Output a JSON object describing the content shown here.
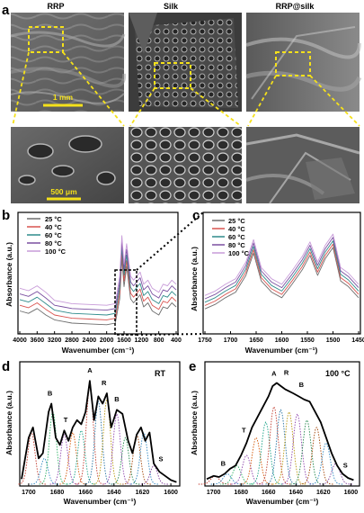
{
  "panel_a": {
    "label": "a",
    "columns": [
      "RRP",
      "Silk",
      "RRP@silk"
    ],
    "scalebar_top": "1 mm",
    "scalebar_bottom": "500 μm",
    "colors": {
      "highlight_box": "#f5e11a",
      "sem_dark": "#2a2a2a",
      "sem_light": "#9a9a9a"
    }
  },
  "panel_b": {
    "label": "b",
    "legend": [
      "25 °C",
      "40 °C",
      "60 °C",
      "80 °C",
      "100 °C"
    ],
    "legend_colors": [
      "#6e6e6e",
      "#d9534f",
      "#2e8b8b",
      "#7a4fa0",
      "#c79ad8"
    ],
    "ylabel": "Absorbance (a.u.)",
    "xlabel": "Wavenumber (cm⁻¹)",
    "xticks": [
      "4000",
      "3600",
      "3200",
      "2800",
      "2400",
      "2000",
      "1600",
      "1200",
      "800",
      "400"
    ]
  },
  "panel_c": {
    "label": "c",
    "legend": [
      "25 °C",
      "40 °C",
      "60 °C",
      "80 °C",
      "100 °C"
    ],
    "ylabel": "Absorbance (a.u.)",
    "xlabel": "Wavenumber (cm⁻¹)",
    "xticks": [
      "1750",
      "1700",
      "1650",
      "1600",
      "1550",
      "1500",
      "1450"
    ]
  },
  "panel_d": {
    "label": "d",
    "condition": "RT",
    "ylabel": "Absorbance (a.u.)",
    "xlabel": "Wavenumber (cm⁻¹)",
    "xticks": [
      "1700",
      "1680",
      "1660",
      "1640",
      "1620",
      "1600"
    ],
    "peak_labels": [
      "B",
      "T",
      "A",
      "R",
      "B",
      "S"
    ]
  },
  "panel_e": {
    "label": "e",
    "condition": "100 °C",
    "ylabel": "Absorbance (a.u.)",
    "xlabel": "Wavenumber (cm⁻¹)",
    "xticks": [
      "1700",
      "1680",
      "1660",
      "1640",
      "1620",
      "1600"
    ],
    "peak_labels": [
      "B",
      "T",
      "A",
      "R",
      "B",
      "S"
    ]
  },
  "chart_data": [
    {
      "type": "line",
      "panel": "b",
      "xlabel": "Wavenumber (cm⁻¹)",
      "ylabel": "Absorbance (a.u.)",
      "xlim": [
        4000,
        400
      ],
      "series": [
        {
          "name": "25 °C",
          "x": [
            4000,
            3800,
            3600,
            3400,
            3200,
            3000,
            2800,
            2400,
            2000,
            1800,
            1700,
            1650,
            1600,
            1540,
            1450,
            1380,
            1230,
            1150,
            1050,
            950,
            800,
            700,
            600,
            500,
            400
          ],
          "y": [
            0.25,
            0.22,
            0.28,
            0.2,
            0.14,
            0.12,
            0.1,
            0.09,
            0.08,
            0.1,
            0.4,
            0.9,
            0.55,
            0.8,
            0.4,
            0.35,
            0.45,
            0.3,
            0.35,
            0.25,
            0.2,
            0.3,
            0.28,
            0.35,
            0.3
          ]
        },
        {
          "name": "40 °C",
          "x": [
            4000,
            3800,
            3600,
            3400,
            3200,
            3000,
            2800,
            2400,
            2000,
            1800,
            1700,
            1650,
            1600,
            1540,
            1450,
            1380,
            1230,
            1150,
            1050,
            950,
            800,
            700,
            600,
            500,
            400
          ],
          "y": [
            0.27,
            0.24,
            0.3,
            0.22,
            0.15,
            0.13,
            0.11,
            0.1,
            0.09,
            0.11,
            0.42,
            0.92,
            0.57,
            0.82,
            0.42,
            0.37,
            0.47,
            0.32,
            0.37,
            0.27,
            0.22,
            0.32,
            0.3,
            0.37,
            0.32
          ]
        },
        {
          "name": "60 °C",
          "x": [
            4000,
            3800,
            3600,
            3400,
            3200,
            3000,
            2800,
            2400,
            2000,
            1800,
            1700,
            1650,
            1600,
            1540,
            1450,
            1380,
            1230,
            1150,
            1050,
            950,
            800,
            700,
            600,
            500,
            400
          ],
          "y": [
            0.29,
            0.26,
            0.32,
            0.24,
            0.16,
            0.14,
            0.12,
            0.11,
            0.1,
            0.12,
            0.44,
            0.94,
            0.59,
            0.84,
            0.44,
            0.39,
            0.49,
            0.34,
            0.39,
            0.29,
            0.24,
            0.34,
            0.32,
            0.39,
            0.34
          ]
        },
        {
          "name": "80 °C",
          "x": [
            4000,
            3800,
            3600,
            3400,
            3200,
            3000,
            2800,
            2400,
            2000,
            1800,
            1700,
            1650,
            1600,
            1540,
            1450,
            1380,
            1230,
            1150,
            1050,
            950,
            800,
            700,
            600,
            500,
            400
          ],
          "y": [
            0.31,
            0.28,
            0.34,
            0.26,
            0.17,
            0.15,
            0.13,
            0.12,
            0.11,
            0.13,
            0.46,
            0.96,
            0.61,
            0.86,
            0.46,
            0.41,
            0.51,
            0.36,
            0.41,
            0.31,
            0.26,
            0.36,
            0.34,
            0.41,
            0.36
          ]
        },
        {
          "name": "100 °C",
          "x": [
            4000,
            3800,
            3600,
            3400,
            3200,
            3000,
            2800,
            2400,
            2000,
            1800,
            1700,
            1650,
            1600,
            1540,
            1450,
            1380,
            1230,
            1150,
            1050,
            950,
            800,
            700,
            600,
            500,
            400
          ],
          "y": [
            0.33,
            0.3,
            0.36,
            0.28,
            0.18,
            0.16,
            0.14,
            0.13,
            0.12,
            0.14,
            0.48,
            0.98,
            0.63,
            0.88,
            0.48,
            0.43,
            0.53,
            0.38,
            0.43,
            0.33,
            0.28,
            0.38,
            0.36,
            0.43,
            0.38
          ]
        }
      ]
    },
    {
      "type": "line",
      "panel": "c",
      "xlabel": "Wavenumber (cm⁻¹)",
      "ylabel": "Absorbance (a.u.)",
      "xlim": [
        1750,
        1450
      ],
      "series": [
        {
          "name": "25 °C",
          "x": [
            1750,
            1730,
            1710,
            1690,
            1670,
            1655,
            1640,
            1620,
            1600,
            1580,
            1560,
            1545,
            1530,
            1515,
            1500,
            1485,
            1470,
            1450
          ],
          "y": [
            0.2,
            0.24,
            0.3,
            0.35,
            0.5,
            0.7,
            0.45,
            0.35,
            0.3,
            0.42,
            0.55,
            0.68,
            0.5,
            0.65,
            0.75,
            0.45,
            0.4,
            0.3
          ]
        },
        {
          "name": "40 °C",
          "x": [
            1750,
            1730,
            1710,
            1690,
            1670,
            1655,
            1640,
            1620,
            1600,
            1580,
            1560,
            1545,
            1530,
            1515,
            1500,
            1485,
            1470,
            1450
          ],
          "y": [
            0.23,
            0.27,
            0.33,
            0.38,
            0.53,
            0.73,
            0.48,
            0.38,
            0.33,
            0.45,
            0.58,
            0.71,
            0.53,
            0.68,
            0.78,
            0.48,
            0.43,
            0.33
          ]
        },
        {
          "name": "60 °C",
          "x": [
            1750,
            1730,
            1710,
            1690,
            1670,
            1655,
            1640,
            1620,
            1600,
            1580,
            1560,
            1545,
            1530,
            1515,
            1500,
            1485,
            1470,
            1450
          ],
          "y": [
            0.26,
            0.3,
            0.36,
            0.41,
            0.56,
            0.76,
            0.51,
            0.41,
            0.36,
            0.48,
            0.61,
            0.74,
            0.56,
            0.71,
            0.81,
            0.51,
            0.46,
            0.36
          ]
        },
        {
          "name": "80 °C",
          "x": [
            1750,
            1730,
            1710,
            1690,
            1670,
            1655,
            1640,
            1620,
            1600,
            1580,
            1560,
            1545,
            1530,
            1515,
            1500,
            1485,
            1470,
            1450
          ],
          "y": [
            0.29,
            0.33,
            0.39,
            0.44,
            0.59,
            0.79,
            0.54,
            0.44,
            0.39,
            0.51,
            0.64,
            0.77,
            0.59,
            0.74,
            0.84,
            0.54,
            0.49,
            0.39
          ]
        },
        {
          "name": "100 °C",
          "x": [
            1750,
            1730,
            1710,
            1690,
            1670,
            1655,
            1640,
            1620,
            1600,
            1580,
            1560,
            1545,
            1530,
            1515,
            1500,
            1485,
            1470,
            1450
          ],
          "y": [
            0.32,
            0.36,
            0.42,
            0.47,
            0.62,
            0.82,
            0.57,
            0.47,
            0.42,
            0.54,
            0.67,
            0.8,
            0.62,
            0.77,
            0.87,
            0.57,
            0.52,
            0.42
          ]
        }
      ]
    },
    {
      "type": "line",
      "panel": "d",
      "xlabel": "Wavenumber (cm⁻¹)",
      "ylabel": "Absorbance (a.u.)",
      "xlim": [
        1705,
        1595
      ],
      "envelope": {
        "x": [
          1705,
          1700,
          1697,
          1693,
          1690,
          1686,
          1684,
          1681,
          1678,
          1675,
          1672,
          1669,
          1666,
          1663,
          1660,
          1657,
          1654,
          1651,
          1648,
          1645,
          1642,
          1638,
          1634,
          1630,
          1627,
          1624,
          1621,
          1618,
          1615,
          1612,
          1608,
          1604,
          1600,
          1596
        ],
        "y": [
          0.05,
          0.45,
          0.55,
          0.25,
          0.3,
          0.7,
          0.78,
          0.45,
          0.38,
          0.52,
          0.42,
          0.55,
          0.62,
          0.58,
          0.7,
          1.0,
          0.62,
          0.85,
          0.78,
          0.88,
          0.55,
          0.72,
          0.68,
          0.42,
          0.3,
          0.48,
          0.55,
          0.42,
          0.5,
          0.2,
          0.12,
          0.08,
          0.04,
          0.02
        ]
      },
      "components": [
        {
          "center": 1698,
          "amp": 0.5,
          "width": 2.5
        },
        {
          "center": 1689,
          "amp": 0.25,
          "width": 2.5
        },
        {
          "center": 1683,
          "amp": 0.7,
          "width": 2.5
        },
        {
          "center": 1675,
          "amp": 0.48,
          "width": 2.5
        },
        {
          "center": 1669,
          "amp": 0.5,
          "width": 2.5
        },
        {
          "center": 1663,
          "amp": 0.52,
          "width": 2.5
        },
        {
          "center": 1657,
          "amp": 0.95,
          "width": 2.5
        },
        {
          "center": 1651,
          "amp": 0.8,
          "width": 2.5
        },
        {
          "center": 1645,
          "amp": 0.82,
          "width": 2.5
        },
        {
          "center": 1638,
          "amp": 0.68,
          "width": 2.5
        },
        {
          "center": 1632,
          "amp": 0.45,
          "width": 2.5
        },
        {
          "center": 1624,
          "amp": 0.48,
          "width": 2.5
        },
        {
          "center": 1619,
          "amp": 0.5,
          "width": 2.5
        },
        {
          "center": 1612,
          "amp": 0.18,
          "width": 2.5
        }
      ]
    },
    {
      "type": "line",
      "panel": "e",
      "xlabel": "Wavenumber (cm⁻¹)",
      "ylabel": "Absorbance (a.u.)",
      "xlim": [
        1705,
        1595
      ],
      "envelope": {
        "x": [
          1705,
          1700,
          1696,
          1692,
          1688,
          1684,
          1680,
          1676,
          1672,
          1668,
          1664,
          1660,
          1657,
          1654,
          1651,
          1648,
          1645,
          1642,
          1638,
          1634,
          1630,
          1626,
          1622,
          1618,
          1614,
          1610,
          1606,
          1602,
          1598
        ],
        "y": [
          0.05,
          0.08,
          0.07,
          0.1,
          0.15,
          0.18,
          0.28,
          0.4,
          0.55,
          0.65,
          0.75,
          0.85,
          0.95,
          0.98,
          0.95,
          0.92,
          0.9,
          0.88,
          0.85,
          0.82,
          0.8,
          0.7,
          0.6,
          0.45,
          0.3,
          0.18,
          0.1,
          0.06,
          0.04
        ]
      },
      "components": [
        {
          "center": 1699,
          "amp": 0.08,
          "width": 3
        },
        {
          "center": 1690,
          "amp": 0.1,
          "width": 3
        },
        {
          "center": 1683,
          "amp": 0.18,
          "width": 3
        },
        {
          "center": 1676,
          "amp": 0.28,
          "width": 3
        },
        {
          "center": 1669,
          "amp": 0.45,
          "width": 3
        },
        {
          "center": 1662,
          "amp": 0.6,
          "width": 3
        },
        {
          "center": 1656,
          "amp": 0.75,
          "width": 3
        },
        {
          "center": 1651,
          "amp": 0.72,
          "width": 3
        },
        {
          "center": 1645,
          "amp": 0.7,
          "width": 3
        },
        {
          "center": 1639,
          "amp": 0.68,
          "width": 3
        },
        {
          "center": 1632,
          "amp": 0.62,
          "width": 3
        },
        {
          "center": 1625,
          "amp": 0.55,
          "width": 3
        },
        {
          "center": 1618,
          "amp": 0.4,
          "width": 3
        },
        {
          "center": 1611,
          "amp": 0.2,
          "width": 3
        }
      ]
    }
  ]
}
